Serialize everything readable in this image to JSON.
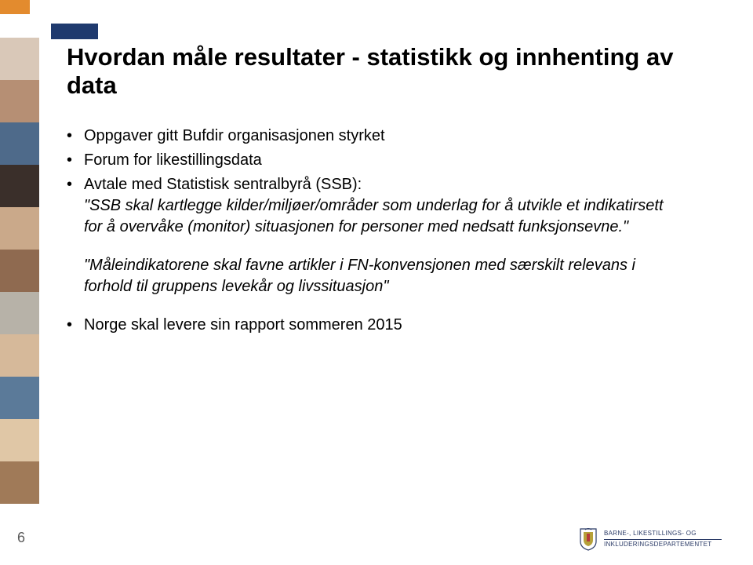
{
  "accent": {
    "orange": "#e38b2e",
    "navy": "#1f3a6e"
  },
  "sidebar_swatches": [
    "#d9c8b8",
    "#b68f74",
    "#4e6a8a",
    "#3a2f2a",
    "#caa98a",
    "#8f6a50",
    "#b7b2a8",
    "#d6b99a",
    "#5b7a99",
    "#e0c7a6",
    "#a07a58"
  ],
  "title": "Hvordan måle resultater - statistikk og innhenting av data",
  "bullets": {
    "b1": "Oppgaver gitt Bufdir organisasjonen styrket",
    "b2": "Forum for likestillingsdata",
    "b3_lead": "Avtale med Statistisk sentralbyrå (SSB):",
    "b3_quote": "\"SSB skal kartlegge kilder/miljøer/områder som underlag for å utvikle et indikatirsett for å overvåke (monitor) situasjonen for personer med nedsatt funksjonsevne.\"",
    "b3_quote2": "\"Måleindikatorene skal favne artikler i FN-konvensjonen med særskilt relevans i forhold til gruppens levekår og livssituasjon\"",
    "b4": "Norge skal levere sin rapport sommeren 2015"
  },
  "page_number": "6",
  "footer": {
    "line1": "BARNE-, LIKESTILLINGS- OG",
    "line2": "INKLUDERINGSDEPARTEMENTET",
    "shield_fill": "#2a3a66",
    "shield_accent": "#b63a3a"
  }
}
